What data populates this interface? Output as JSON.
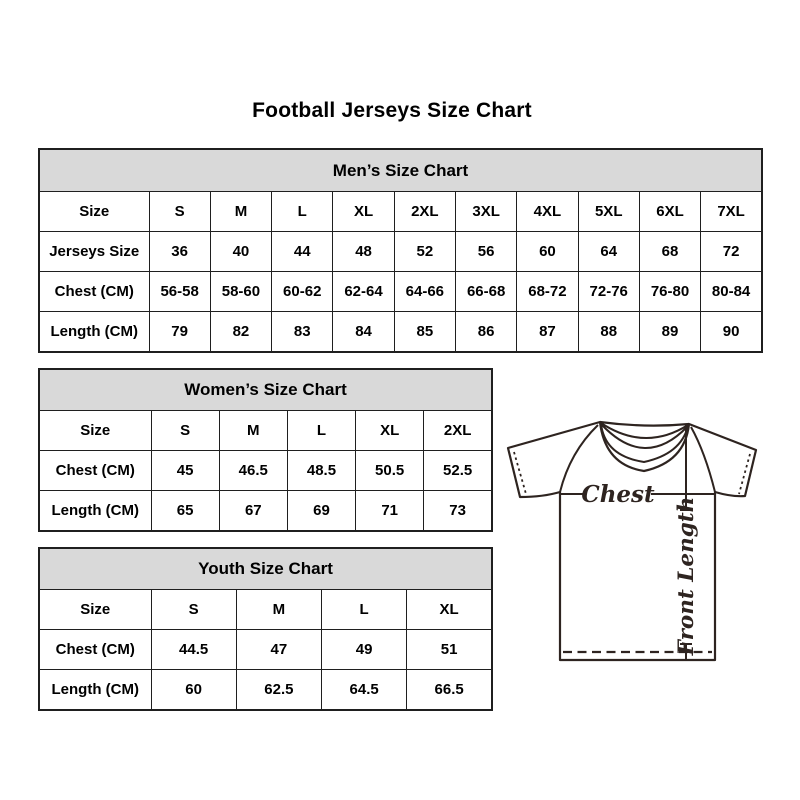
{
  "page": {
    "title": "Football Jerseys Size Chart"
  },
  "tables": {
    "mens": {
      "title": "Men’s Size Chart",
      "rows": [
        {
          "label": "Size",
          "values": [
            "S",
            "M",
            "L",
            "XL",
            "2XL",
            "3XL",
            "4XL",
            "5XL",
            "6XL",
            "7XL"
          ]
        },
        {
          "label": "Jerseys Size",
          "values": [
            "36",
            "40",
            "44",
            "48",
            "52",
            "56",
            "60",
            "64",
            "68",
            "72"
          ]
        },
        {
          "label": "Chest (CM)",
          "values": [
            "56-58",
            "58-60",
            "60-62",
            "62-64",
            "64-66",
            "66-68",
            "68-72",
            "72-76",
            "76-80",
            "80-84"
          ]
        },
        {
          "label": "Length (CM)",
          "values": [
            "79",
            "82",
            "83",
            "84",
            "85",
            "86",
            "87",
            "88",
            "89",
            "90"
          ]
        }
      ]
    },
    "womens": {
      "title": "Women’s Size Chart",
      "rows": [
        {
          "label": "Size",
          "values": [
            "S",
            "M",
            "L",
            "XL",
            "2XL"
          ]
        },
        {
          "label": "Chest (CM)",
          "values": [
            "45",
            "46.5",
            "48.5",
            "50.5",
            "52.5"
          ]
        },
        {
          "label": "Length (CM)",
          "values": [
            "65",
            "67",
            "69",
            "71",
            "73"
          ]
        }
      ]
    },
    "youth": {
      "title": "Youth Size Chart",
      "rows": [
        {
          "label": "Size",
          "values": [
            "S",
            "M",
            "L",
            "XL"
          ]
        },
        {
          "label": "Chest (CM)",
          "values": [
            "44.5",
            "47",
            "49",
            "51"
          ]
        },
        {
          "label": "Length (CM)",
          "values": [
            "60",
            "62.5",
            "64.5",
            "66.5"
          ]
        }
      ]
    }
  },
  "diagram": {
    "chest_label": "Chest",
    "front_length_label": "Front Length"
  },
  "colors": {
    "header_bg": "#d9d9d9",
    "table_border": "#1f1f1f",
    "sketch": "#2e2420"
  }
}
